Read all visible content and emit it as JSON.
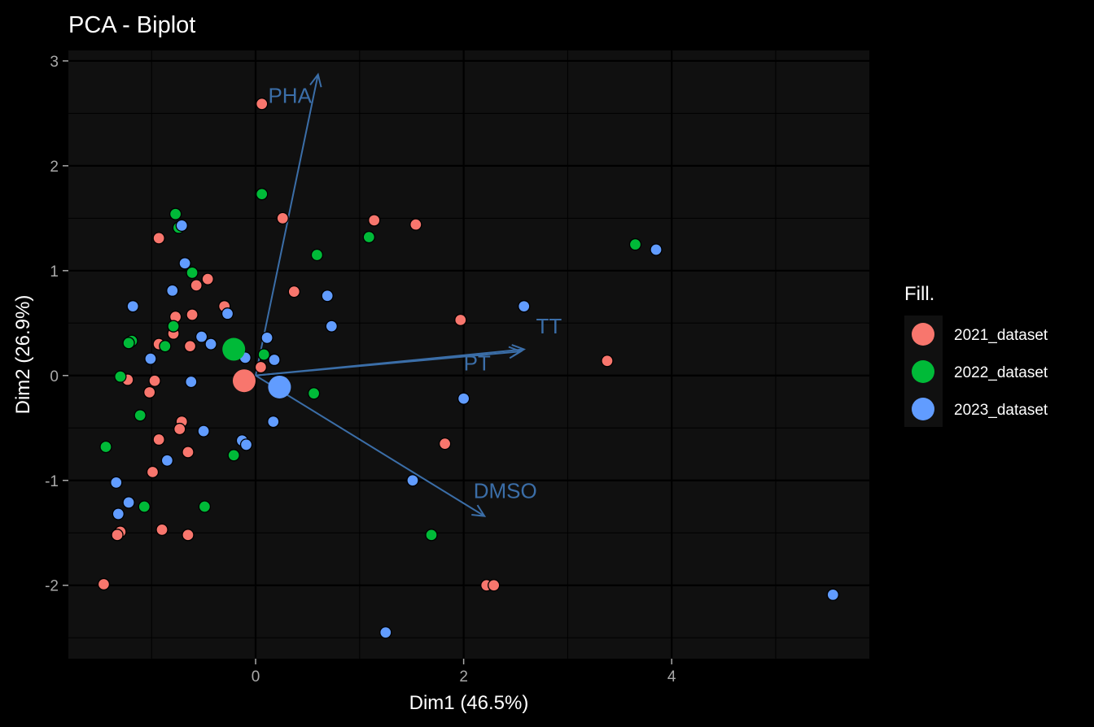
{
  "chart_data": {
    "type": "scatter",
    "title": "PCA - Biplot",
    "xlabel": "Dim1 (46.5%)",
    "ylabel": "Dim2 (26.9%)",
    "xlim": [
      -1.8,
      5.9
    ],
    "ylim": [
      -2.7,
      3.1
    ],
    "x_ticks": [
      0,
      2,
      4
    ],
    "x_tick_labels": [
      "0",
      "2",
      "4"
    ],
    "y_ticks": [
      3,
      2,
      1,
      0,
      -1,
      -2
    ],
    "y_tick_labels": [
      "3",
      "2",
      "1",
      "0",
      "-1",
      "-2"
    ],
    "grid": true,
    "legend": {
      "title": "Fill.",
      "position": "right"
    },
    "series": [
      {
        "name": "2021_dataset",
        "color": "#F8766D",
        "points": [
          [
            0.06,
            2.59
          ],
          [
            0.26,
            1.5
          ],
          [
            1.14,
            1.48
          ],
          [
            1.54,
            1.44
          ],
          [
            -0.93,
            1.31
          ],
          [
            -0.46,
            0.92
          ],
          [
            -0.57,
            0.86
          ],
          [
            0.37,
            0.8
          ],
          [
            -0.3,
            0.66
          ],
          [
            -0.61,
            0.58
          ],
          [
            -0.77,
            0.56
          ],
          [
            -0.79,
            0.4
          ],
          [
            -0.93,
            0.3
          ],
          [
            -0.63,
            0.28
          ],
          [
            1.97,
            0.53
          ],
          [
            3.38,
            0.14
          ],
          [
            0.05,
            0.08
          ],
          [
            -1.23,
            -0.04
          ],
          [
            -0.97,
            -0.05
          ],
          [
            -1.02,
            -0.16
          ],
          [
            -0.71,
            -0.44
          ],
          [
            -0.73,
            -0.51
          ],
          [
            -0.93,
            -0.61
          ],
          [
            -0.65,
            -0.73
          ],
          [
            -0.99,
            -0.92
          ],
          [
            1.82,
            -0.65
          ],
          [
            -1.3,
            -1.49
          ],
          [
            -1.33,
            -1.52
          ],
          [
            -0.9,
            -1.47
          ],
          [
            -0.65,
            -1.52
          ],
          [
            -1.46,
            -1.99
          ],
          [
            2.22,
            -2.0
          ],
          [
            2.29,
            -2.0
          ]
        ],
        "centroid": [
          -0.11,
          -0.05
        ]
      },
      {
        "name": "2022_dataset",
        "color": "#00BA38",
        "points": [
          [
            0.06,
            1.73
          ],
          [
            -0.77,
            1.54
          ],
          [
            -0.74,
            1.41
          ],
          [
            1.09,
            1.32
          ],
          [
            0.59,
            1.15
          ],
          [
            -0.61,
            0.98
          ],
          [
            3.65,
            1.25
          ],
          [
            -0.79,
            0.47
          ],
          [
            -1.19,
            0.33
          ],
          [
            -1.22,
            0.31
          ],
          [
            -0.87,
            0.28
          ],
          [
            0.08,
            0.2
          ],
          [
            -1.3,
            -0.01
          ],
          [
            -1.11,
            -0.38
          ],
          [
            0.56,
            -0.17
          ],
          [
            -1.44,
            -0.68
          ],
          [
            -0.21,
            -0.76
          ],
          [
            -1.07,
            -1.25
          ],
          [
            -0.49,
            -1.25
          ],
          [
            1.69,
            -1.52
          ]
        ],
        "centroid": [
          -0.21,
          0.25
        ]
      },
      {
        "name": "2023_dataset",
        "color": "#619CFF",
        "points": [
          [
            -0.71,
            1.43
          ],
          [
            -0.68,
            1.07
          ],
          [
            -0.8,
            0.81
          ],
          [
            0.69,
            0.76
          ],
          [
            -1.18,
            0.66
          ],
          [
            2.58,
            0.66
          ],
          [
            -0.27,
            0.59
          ],
          [
            0.73,
            0.47
          ],
          [
            -0.52,
            0.37
          ],
          [
            0.11,
            0.36
          ],
          [
            -0.43,
            0.3
          ],
          [
            -1.01,
            0.16
          ],
          [
            -0.1,
            0.17
          ],
          [
            0.18,
            0.15
          ],
          [
            -0.62,
            -0.06
          ],
          [
            2.0,
            -0.22
          ],
          [
            0.17,
            -0.44
          ],
          [
            -0.5,
            -0.53
          ],
          [
            -0.13,
            -0.62
          ],
          [
            -0.09,
            -0.66
          ],
          [
            -0.85,
            -0.81
          ],
          [
            1.51,
            -1.0
          ],
          [
            -1.34,
            -1.02
          ],
          [
            -1.22,
            -1.21
          ],
          [
            -1.32,
            -1.32
          ],
          [
            1.25,
            -2.45
          ],
          [
            3.85,
            1.2
          ],
          [
            5.55,
            -2.09
          ]
        ],
        "centroid": [
          0.23,
          -0.11
        ]
      }
    ],
    "arrows": [
      {
        "name": "PHA",
        "x": 0.6,
        "y": 2.87,
        "label_x": 0.33,
        "label_y": 2.6
      },
      {
        "name": "TT",
        "x": 2.58,
        "y": 0.25,
        "label_x": 2.82,
        "label_y": 0.4
      },
      {
        "name": "PT",
        "x": 2.55,
        "y": 0.23,
        "label_x": 2.13,
        "label_y": 0.05
      },
      {
        "name": "DMSO",
        "x": 2.2,
        "y": -1.34,
        "label_x": 2.4,
        "label_y": -1.17
      }
    ],
    "arrow_color": "#3B6EA8"
  }
}
